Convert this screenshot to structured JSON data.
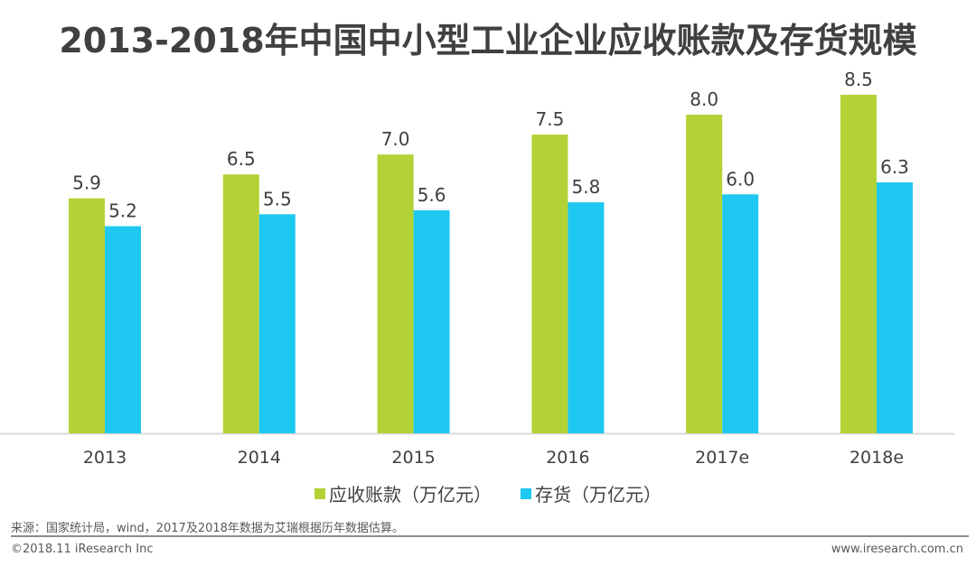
{
  "header": {
    "title": "2013-2018年中国中小型工业企业应收账款及存货规模"
  },
  "chart_data": {
    "type": "bar",
    "title": "2013-2018年中国中小型工业企业应收账款及存货规模",
    "categories": [
      "2013",
      "2014",
      "2015",
      "2016",
      "2017e",
      "2018e"
    ],
    "series": [
      {
        "name": "应收账款（万亿元）",
        "color": "#b3d236",
        "values": [
          5.9,
          6.5,
          7.0,
          7.5,
          8.0,
          8.5
        ],
        "labels": [
          "5.9",
          "6.5",
          "7.0",
          "7.5",
          "8.0",
          "8.5"
        ]
      },
      {
        "name": "存货（万亿元）",
        "color": "#1ec8f0",
        "values": [
          5.2,
          5.5,
          5.6,
          5.8,
          6.0,
          6.3
        ],
        "labels": [
          "5.2",
          "5.5",
          "5.6",
          "5.8",
          "6.0",
          "6.3"
        ]
      }
    ],
    "xlabel": "",
    "ylabel": "",
    "ylim": [
      0,
      8.5
    ],
    "grid": false,
    "legend_position": "bottom"
  },
  "footer": {
    "source": "来源：国家统计局，wind，2017及2018年数据为艾瑞根据历年数据估算。",
    "copyright": "©2018.11 iResearch Inc",
    "website": "www.iresearch.com.cn"
  }
}
